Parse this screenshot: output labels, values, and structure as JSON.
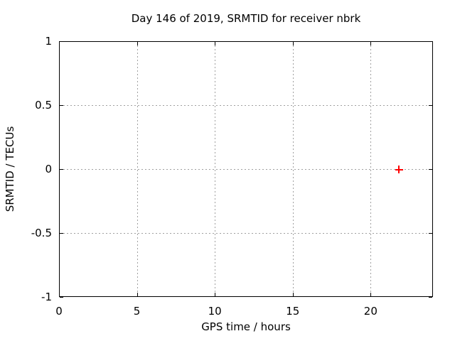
{
  "title": "Day 146 of 2019, SRMTID for receiver nbrk",
  "chart_data": {
    "type": "scatter",
    "title": "Day 146 of 2019, SRMTID for receiver nbrk",
    "xlabel": "GPS time / hours",
    "ylabel": "SRMTID / TECUs",
    "xlim": [
      0,
      24
    ],
    "ylim": [
      -1,
      1
    ],
    "xticks": [
      0,
      5,
      10,
      15,
      20
    ],
    "yticks": [
      1,
      0.5,
      0,
      -0.5,
      -1
    ],
    "grid": true,
    "legend": "none",
    "series": [
      {
        "marker": "plus",
        "color": "#ff0000",
        "points": [
          {
            "x": 21.8,
            "y": 0
          }
        ]
      }
    ],
    "colors": {
      "axis": "#000000",
      "text": "#000000",
      "grid": "#a0a0a0",
      "marker": "#ff0000",
      "background": "#ffffff"
    }
  }
}
